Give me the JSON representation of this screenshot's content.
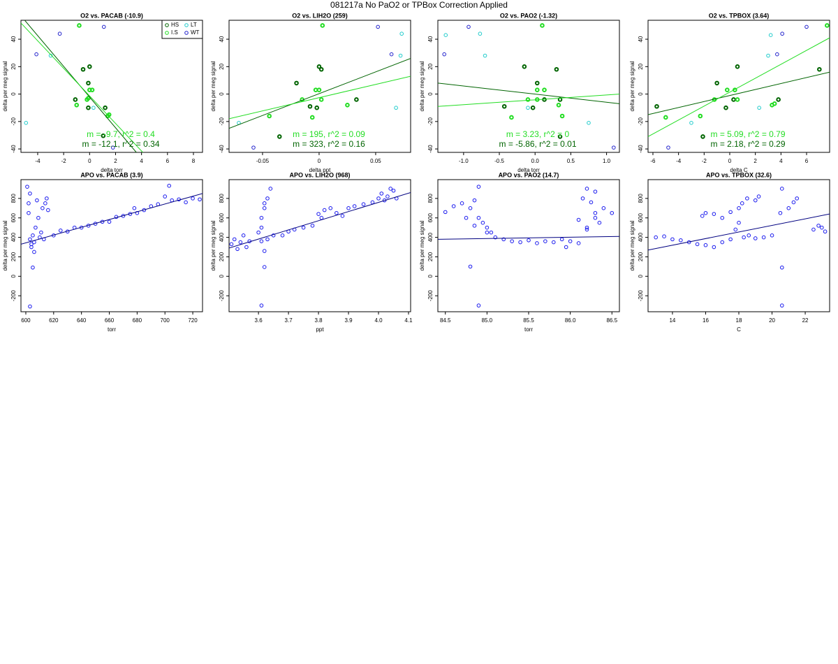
{
  "title": "081217a   No PaO2 or TPBox Correction Applied",
  "chart_data": [
    {
      "type": "scatter",
      "title": "O2 vs. PACAB (-10.9)",
      "xlabel": "delta torr",
      "ylabel": "delta per meg signal",
      "xlim": [
        -5.29,
        8.7
      ],
      "xticks": [
        -4,
        -2,
        0,
        2,
        4,
        6,
        8
      ],
      "ylim": [
        -42.5,
        53.8
      ],
      "yticks": [
        -40,
        -20,
        0,
        20,
        40
      ],
      "legend": "topright",
      "series": [
        {
          "name": "HS",
          "color": "#006400",
          "lwd": 2,
          "x": [
            -1.1,
            -0.5,
            -0.1,
            0,
            -0.1,
            1.2,
            1.05
          ],
          "y": [
            -4,
            18,
            8,
            20,
            -10,
            -10,
            -30.4
          ]
        },
        {
          "name": "I.S",
          "color": "#22dd22",
          "lwd": 2,
          "x": [
            -1,
            -0.2,
            0,
            0.2,
            -0.1,
            1.4,
            1.5,
            -0.8
          ],
          "y": [
            -8,
            -4,
            3,
            3,
            -3,
            -16,
            -15,
            50
          ]
        },
        {
          "name": "LT",
          "color": "#22cccc",
          "lwd": 1,
          "x": [
            -4.9,
            0.3,
            -3
          ],
          "y": [
            -21,
            -10,
            28
          ]
        },
        {
          "name": "WT",
          "color": "#2222cc",
          "lwd": 1,
          "x": [
            -4.1,
            1.1,
            1.8,
            -2.3
          ],
          "y": [
            29,
            49,
            -39,
            44
          ]
        }
      ],
      "lines": [
        {
          "color": "#006400",
          "x": [
            -5.0,
            3.6
          ],
          "y": [
            53.8,
            -42.5
          ]
        },
        {
          "color": "#22dd22",
          "x": [
            -5.29,
            4.1
          ],
          "y": [
            51.8,
            -42.5
          ]
        }
      ],
      "annotations": [
        {
          "text": "m = -9.7, r^2 = 0.4",
          "color": "#22dd22"
        },
        {
          "text": "m = -12.1, r^2 = 0.34",
          "color": "#006400"
        }
      ]
    },
    {
      "type": "scatter",
      "title": "O2 vs. LIH2O (259)",
      "xlabel": "delta ppt",
      "ylabel": "delta per meg signal",
      "xlim": [
        -0.0796,
        0.0809
      ],
      "xticks": [
        -0.05,
        0,
        0.05
      ],
      "ylim": [
        -42.5,
        53.8
      ],
      "yticks": [
        -40,
        -20,
        0,
        20,
        40
      ],
      "series": [
        {
          "name": "HS",
          "color": "#006400",
          "lwd": 2,
          "x": [
            -0.035,
            -0.02,
            0,
            0.002,
            0.033,
            -0.008,
            -0.002
          ],
          "y": [
            -31,
            8,
            20,
            18,
            -4,
            -9,
            -10
          ]
        },
        {
          "name": "I.S",
          "color": "#22dd22",
          "lwd": 2,
          "x": [
            -0.044,
            -0.015,
            -0.003,
            0,
            0.002,
            0.025,
            -0.006,
            0.003
          ],
          "y": [
            -16,
            -4,
            3,
            3,
            -4,
            -8,
            -17,
            50
          ]
        },
        {
          "name": "LT",
          "color": "#22cccc",
          "lwd": 1,
          "x": [
            -0.071,
            0.068,
            0.073,
            0.072
          ],
          "y": [
            -21,
            -10,
            44,
            28
          ]
        },
        {
          "name": "WT",
          "color": "#2222cc",
          "lwd": 1,
          "x": [
            -0.058,
            0.052,
            0.064
          ],
          "y": [
            -39,
            49,
            29
          ]
        }
      ],
      "lines": [
        {
          "color": "#006400",
          "x": [
            -0.0796,
            0.0809
          ],
          "y": [
            -25,
            26
          ]
        },
        {
          "color": "#22dd22",
          "x": [
            -0.0796,
            0.0809
          ],
          "y": [
            -18,
            13
          ]
        }
      ],
      "annotations": [
        {
          "text": "m = 195, r^2 = 0.09",
          "color": "#22dd22"
        },
        {
          "text": "m = 323, r^2 = 0.16",
          "color": "#006400"
        }
      ]
    },
    {
      "type": "scatter",
      "title": "O2 vs. PAO2 (-1.32)",
      "xlabel": "delta torr",
      "ylabel": "delta per meg signal",
      "xlim": [
        -1.36,
        1.18
      ],
      "xticks": [
        {
          "value": -1,
          "label": "-1.0"
        },
        -0.5,
        {
          "value": 0,
          "label": "0.0"
        },
        0.5,
        {
          "value": 1,
          "label": "1.0"
        }
      ],
      "ylim": [
        -42.5,
        53.8
      ],
      "yticks": [
        -40,
        -20,
        0,
        20,
        40
      ],
      "series": [
        {
          "name": "HS",
          "color": "#006400",
          "lwd": 2,
          "x": [
            -0.15,
            0.03,
            0.3,
            -0.43,
            -0.03,
            0.13,
            0.35,
            0.35
          ],
          "y": [
            20,
            8,
            18,
            -9,
            -10,
            -4,
            -4,
            -31
          ]
        },
        {
          "name": "I.S",
          "color": "#22dd22",
          "lwd": 2,
          "x": [
            -0.33,
            -0.1,
            0.03,
            0.03,
            0.13,
            0.33,
            0.38,
            0.1
          ],
          "y": [
            -17,
            -4,
            -4,
            3,
            3,
            -8,
            -16,
            50
          ]
        },
        {
          "name": "LT",
          "color": "#22cccc",
          "lwd": 1,
          "x": [
            -1.25,
            0.75,
            -0.7,
            -0.77,
            -0.1
          ],
          "y": [
            43,
            -21,
            28,
            44,
            -10
          ]
        },
        {
          "name": "WT",
          "color": "#2222cc",
          "lwd": 1,
          "x": [
            -1.27,
            -0.93,
            1.1
          ],
          "y": [
            29,
            49,
            -39
          ]
        }
      ],
      "lines": [
        {
          "color": "#006400",
          "x": [
            -1.36,
            1.18
          ],
          "y": [
            8,
            -7
          ]
        },
        {
          "color": "#22dd22",
          "x": [
            -1.36,
            1.18
          ],
          "y": [
            -9,
            0
          ]
        }
      ],
      "annotations": [
        {
          "text": "m = 3.23, r^2 = 0",
          "color": "#22dd22"
        },
        {
          "text": "m = -5.86, r^2 = 0.01",
          "color": "#006400"
        }
      ]
    },
    {
      "type": "scatter",
      "title": "O2 vs. TPBOX (3.64)",
      "xlabel": "delta C",
      "ylabel": "delta per meg signal",
      "xlim": [
        -6.38,
        7.8
      ],
      "xticks": [
        -6,
        -4,
        -2,
        0,
        2,
        4,
        6
      ],
      "ylim": [
        -42.5,
        53.8
      ],
      "yticks": [
        -40,
        -20,
        0,
        20,
        40
      ],
      "series": [
        {
          "name": "HS",
          "color": "#006400",
          "lwd": 2,
          "x": [
            -5.7,
            -2.1,
            -1,
            0.6,
            -0.3,
            0.3,
            3.8,
            7
          ],
          "y": [
            -9,
            -31,
            8,
            20,
            -10,
            -4,
            -4,
            18
          ]
        },
        {
          "name": "I.S",
          "color": "#22dd22",
          "lwd": 2,
          "x": [
            -5,
            -2.3,
            -1.2,
            -0.2,
            0.4,
            0.6,
            3.3,
            7.6,
            3.5
          ],
          "y": [
            -17,
            -16,
            -4,
            3,
            3,
            -4,
            -8,
            50,
            -7
          ]
        },
        {
          "name": "LT",
          "color": "#22cccc",
          "lwd": 1,
          "x": [
            -3,
            3.2,
            2.3,
            3.0
          ],
          "y": [
            -21,
            43,
            -10,
            28
          ]
        },
        {
          "name": "WT",
          "color": "#2222cc",
          "lwd": 1,
          "x": [
            -4.8,
            3.7,
            4.1,
            6
          ],
          "y": [
            -39,
            29,
            44,
            49
          ]
        }
      ],
      "lines": [
        {
          "color": "#006400",
          "x": [
            -6.38,
            7.8
          ],
          "y": [
            -15,
            16
          ]
        },
        {
          "color": "#22dd22",
          "x": [
            -6.38,
            7.8
          ],
          "y": [
            -31,
            41
          ]
        }
      ],
      "annotations": [
        {
          "text": "m = 5.09, r^2 = 0.79",
          "color": "#22dd22"
        },
        {
          "text": "m = 2.18, r^2 = 0.29",
          "color": "#006400"
        }
      ]
    },
    {
      "type": "scatter",
      "title": "APO vs. PACAB (3.9)",
      "xlabel": "torr",
      "ylabel": "delta per meg signal",
      "xlim": [
        596.5,
        727
      ],
      "xticks": [
        600,
        620,
        640,
        660,
        680,
        700,
        720
      ],
      "ylim": [
        -364,
        993
      ],
      "yticks": [
        -200,
        0,
        200,
        400,
        600,
        800
      ],
      "series": [
        {
          "color": "#1a1aee",
          "lwd": 1,
          "x": [
            601,
            602,
            603,
            604,
            605,
            606,
            607,
            608,
            610,
            612,
            614,
            615,
            616,
            604,
            606,
            609,
            611,
            613,
            603,
            605,
            620,
            625,
            630,
            635,
            640,
            645,
            650,
            655,
            660,
            665,
            670,
            675,
            678,
            680,
            685,
            690,
            695,
            700,
            703,
            705,
            710,
            715,
            720,
            725,
            603,
            602
          ],
          "y": [
            920,
            650,
            380,
            300,
            420,
            350,
            500,
            780,
            400,
            700,
            750,
            800,
            680,
            330,
            250,
            600,
            450,
            380,
            -310,
            90,
            420,
            470,
            460,
            500,
            500,
            520,
            540,
            560,
            560,
            610,
            620,
            640,
            700,
            650,
            680,
            720,
            740,
            820,
            930,
            780,
            790,
            760,
            800,
            790,
            850,
            750
          ]
        }
      ],
      "lines": [
        {
          "color": "#000080",
          "x": [
            596.5,
            727
          ],
          "y": [
            330,
            850
          ]
        }
      ]
    },
    {
      "type": "scatter",
      "title": "APO vs. LIH2O (968)",
      "xlabel": "ppt",
      "ylabel": "delta per meg signal",
      "xlim": [
        3.502,
        4.107
      ],
      "xticks": [
        3.6,
        3.7,
        3.8,
        3.9,
        {
          "value": 4,
          "label": "4.0"
        },
        4.1
      ],
      "ylim": [
        -364,
        993
      ],
      "yticks": [
        -200,
        0,
        200,
        400,
        600,
        800
      ],
      "series": [
        {
          "color": "#1a1aee",
          "lwd": 1,
          "x": [
            3.51,
            3.52,
            3.53,
            3.54,
            3.55,
            3.56,
            3.57,
            3.6,
            3.61,
            3.62,
            3.63,
            3.64,
            3.61,
            3.62,
            3.63,
            3.65,
            3.62,
            3.61,
            3.68,
            3.7,
            3.72,
            3.75,
            3.78,
            3.8,
            3.81,
            3.82,
            3.84,
            3.86,
            3.88,
            3.9,
            3.92,
            3.95,
            3.98,
            4.0,
            4.01,
            4.02,
            4.03,
            4.04,
            4.05,
            4.06,
            3.62,
            3.61
          ],
          "y": [
            330,
            380,
            280,
            350,
            420,
            300,
            360,
            450,
            500,
            700,
            800,
            900,
            600,
            750,
            380,
            420,
            260,
            -300,
            420,
            460,
            480,
            500,
            520,
            640,
            600,
            680,
            700,
            650,
            620,
            700,
            720,
            740,
            760,
            800,
            850,
            780,
            820,
            900,
            880,
            800,
            95,
            360
          ]
        }
      ],
      "lines": [
        {
          "color": "#000080",
          "x": [
            3.502,
            4.107
          ],
          "y": [
            290,
            860
          ]
        }
      ]
    },
    {
      "type": "scatter",
      "title": "APO vs. PAO2 (14.7)",
      "xlabel": "torr",
      "ylabel": "delta per meg signal",
      "xlim": [
        84.41,
        86.59
      ],
      "xticks": [
        84.5,
        {
          "value": 85,
          "label": "85.0"
        },
        85.5,
        {
          "value": 86,
          "label": "86.0"
        },
        86.5
      ],
      "ylim": [
        -364,
        993
      ],
      "yticks": [
        -200,
        0,
        200,
        400,
        600,
        800
      ],
      "series": [
        {
          "color": "#1a1aee",
          "lwd": 1,
          "x": [
            84.5,
            84.6,
            84.7,
            84.75,
            84.8,
            84.85,
            84.9,
            84.95,
            85.0,
            85.05,
            85.1,
            85.2,
            84.8,
            84.9,
            85.3,
            85.4,
            85.5,
            85.6,
            85.7,
            85.8,
            85.9,
            86.0,
            86.1,
            86.2,
            86.3,
            86.4,
            86.5,
            86.15,
            86.2,
            86.25,
            86.3,
            86.35,
            86.2,
            86.3,
            86.1,
            85.95,
            84.85,
            84.9,
            85.0
          ],
          "y": [
            660,
            720,
            750,
            600,
            700,
            780,
            920,
            550,
            500,
            450,
            400,
            380,
            100,
            -300,
            360,
            350,
            370,
            340,
            360,
            350,
            380,
            360,
            340,
            500,
            600,
            700,
            650,
            800,
            900,
            760,
            650,
            550,
            480,
            870,
            580,
            300,
            520,
            600,
            450
          ]
        }
      ],
      "lines": [
        {
          "color": "#000080",
          "x": [
            84.41,
            86.59
          ],
          "y": [
            380,
            410
          ]
        }
      ]
    },
    {
      "type": "scatter",
      "title": "APO vs. TPBOX (32.6)",
      "xlabel": "C",
      "ylabel": "delta per meg signal",
      "xlim": [
        12.53,
        23.47
      ],
      "xticks": [
        14,
        16,
        18,
        20,
        22
      ],
      "ylim": [
        -364,
        993
      ],
      "yticks": [
        -200,
        0,
        200,
        400,
        600,
        800
      ],
      "series": [
        {
          "color": "#1a1aee",
          "lwd": 1,
          "x": [
            13,
            13.5,
            14,
            14.5,
            15,
            15.5,
            16,
            16.5,
            17,
            17.5,
            15.8,
            16,
            16.5,
            17,
            17.5,
            18,
            18.2,
            18.5,
            19,
            19.2,
            17.8,
            18,
            18.3,
            18.6,
            19,
            19.5,
            20,
            20.5,
            20.6,
            21,
            21.3,
            21.5,
            22.5,
            23,
            23.2,
            22.8,
            20.6,
            20.6
          ],
          "y": [
            400,
            410,
            380,
            370,
            350,
            330,
            320,
            300,
            350,
            380,
            620,
            650,
            640,
            600,
            660,
            700,
            750,
            800,
            780,
            820,
            480,
            550,
            400,
            420,
            390,
            400,
            420,
            650,
            900,
            700,
            760,
            800,
            480,
            500,
            460,
            520,
            90,
            -300
          ]
        }
      ],
      "lines": [
        {
          "color": "#000080",
          "x": [
            12.53,
            23.47
          ],
          "y": [
            270,
            640
          ]
        }
      ]
    }
  ]
}
